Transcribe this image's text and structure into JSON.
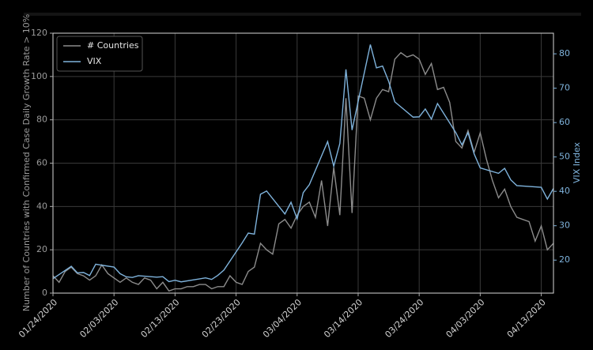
{
  "chart_data": {
    "type": "line",
    "ylabel": "Number of Countries with Confirmed Case Daily Growth Rate > 10%",
    "y2label": "VIX Index",
    "x": [
      "01/24/2020",
      "01/25/2020",
      "01/26/2020",
      "01/27/2020",
      "01/28/2020",
      "01/29/2020",
      "01/30/2020",
      "01/31/2020",
      "02/01/2020",
      "02/02/2020",
      "02/03/2020",
      "02/04/2020",
      "02/05/2020",
      "02/06/2020",
      "02/07/2020",
      "02/08/2020",
      "02/09/2020",
      "02/10/2020",
      "02/11/2020",
      "02/12/2020",
      "02/13/2020",
      "02/14/2020",
      "02/15/2020",
      "02/16/2020",
      "02/17/2020",
      "02/18/2020",
      "02/19/2020",
      "02/20/2020",
      "02/21/2020",
      "02/22/2020",
      "02/23/2020",
      "02/24/2020",
      "02/25/2020",
      "02/26/2020",
      "02/27/2020",
      "02/28/2020",
      "02/29/2020",
      "03/01/2020",
      "03/02/2020",
      "03/03/2020",
      "03/04/2020",
      "03/05/2020",
      "03/06/2020",
      "03/07/2020",
      "03/08/2020",
      "03/09/2020",
      "03/10/2020",
      "03/11/2020",
      "03/12/2020",
      "03/13/2020",
      "03/14/2020",
      "03/15/2020",
      "03/16/2020",
      "03/17/2020",
      "03/18/2020",
      "03/19/2020",
      "03/20/2020",
      "03/21/2020",
      "03/22/2020",
      "03/23/2020",
      "03/24/2020",
      "03/25/2020",
      "03/26/2020",
      "03/27/2020",
      "03/28/2020",
      "03/29/2020",
      "03/30/2020",
      "03/31/2020",
      "04/01/2020",
      "04/02/2020",
      "04/03/2020",
      "04/04/2020",
      "04/05/2020",
      "04/06/2020",
      "04/07/2020",
      "04/08/2020",
      "04/09/2020",
      "04/10/2020",
      "04/11/2020",
      "04/12/2020",
      "04/13/2020",
      "04/14/2020",
      "04/15/2020"
    ],
    "series": [
      {
        "name": "# Countries",
        "color": "#8c8c8c",
        "axis": "y",
        "values": [
          8,
          5,
          10,
          12,
          9,
          8,
          6,
          8,
          13,
          9,
          7,
          5,
          7,
          5,
          4,
          7,
          6,
          2,
          5,
          1,
          2,
          2,
          3,
          3,
          4,
          4,
          2,
          3,
          3,
          8,
          5,
          4,
          10,
          12,
          23,
          20,
          18,
          32,
          34,
          30,
          36,
          40,
          42,
          35,
          52,
          31,
          58,
          36,
          90,
          37,
          91,
          90,
          80,
          90,
          94,
          93,
          108,
          111,
          109,
          110,
          108,
          101,
          106,
          94,
          95,
          88,
          70,
          67,
          75,
          65,
          74,
          62,
          52,
          44,
          48,
          40,
          35,
          34,
          33,
          24,
          31,
          20,
          23
        ]
      },
      {
        "name": "VIX",
        "color": "#7fb3dc",
        "axis": "y2",
        "x": [
          "01/24/2020",
          "01/27/2020",
          "01/28/2020",
          "01/29/2020",
          "01/30/2020",
          "01/31/2020",
          "02/03/2020",
          "02/04/2020",
          "02/05/2020",
          "02/06/2020",
          "02/07/2020",
          "02/10/2020",
          "02/11/2020",
          "02/12/2020",
          "02/13/2020",
          "02/14/2020",
          "02/18/2020",
          "02/19/2020",
          "02/20/2020",
          "02/21/2020",
          "02/24/2020",
          "02/25/2020",
          "02/26/2020",
          "02/27/2020",
          "02/28/2020",
          "03/02/2020",
          "03/03/2020",
          "03/04/2020",
          "03/05/2020",
          "03/06/2020",
          "03/09/2020",
          "03/10/2020",
          "03/11/2020",
          "03/12/2020",
          "03/13/2020",
          "03/16/2020",
          "03/17/2020",
          "03/18/2020",
          "03/19/2020",
          "03/20/2020",
          "03/23/2020",
          "03/24/2020",
          "03/25/2020",
          "03/26/2020",
          "03/27/2020",
          "03/30/2020",
          "03/31/2020",
          "04/01/2020",
          "04/02/2020",
          "04/03/2020",
          "04/06/2020",
          "04/07/2020",
          "04/08/2020",
          "04/09/2020",
          "04/13/2020",
          "04/14/2020",
          "04/15/2020"
        ],
        "values": [
          14.6,
          18.2,
          16.3,
          16.4,
          15.5,
          18.8,
          17.97,
          16.05,
          15.15,
          14.96,
          15.47,
          15.04,
          15.18,
          13.74,
          14.15,
          13.68,
          14.83,
          14.38,
          15.56,
          17.08,
          25.03,
          27.85,
          27.56,
          39.16,
          40.11,
          33.42,
          36.82,
          31.99,
          39.62,
          41.94,
          54.46,
          47.3,
          53.9,
          75.47,
          57.83,
          82.69,
          75.91,
          76.45,
          72.0,
          66.04,
          61.59,
          61.67,
          63.95,
          61.0,
          65.54,
          57.08,
          53.54,
          57.06,
          50.91,
          46.8,
          45.24,
          46.7,
          43.35,
          41.67,
          41.17,
          37.76,
          40.84
        ]
      }
    ],
    "xlim": [
      "01/24/2020",
      "04/15/2020"
    ],
    "xticks": [
      "01/24/2020",
      "02/03/2020",
      "02/13/2020",
      "02/23/2020",
      "03/04/2020",
      "03/14/2020",
      "03/24/2020",
      "04/03/2020",
      "04/13/2020"
    ],
    "ylim": [
      0,
      120
    ],
    "yticks": [
      0,
      20,
      40,
      60,
      80,
      100,
      120
    ],
    "y2lim": [
      10.4,
      86
    ],
    "y2ticks": [
      20,
      30,
      40,
      50,
      60,
      70,
      80
    ],
    "y2color": "#7fb3dc",
    "grid": true,
    "legend": "upper left"
  }
}
